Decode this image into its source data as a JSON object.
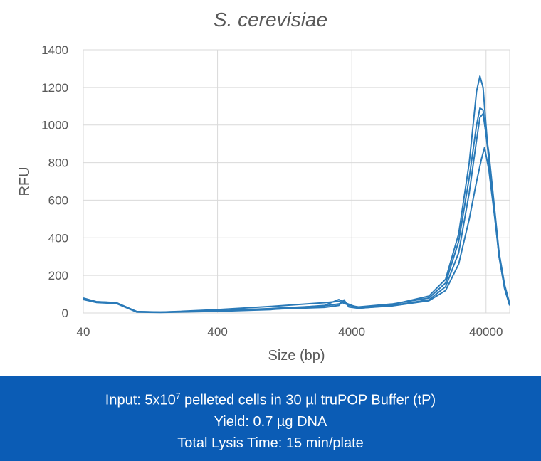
{
  "chart_data": {
    "type": "line",
    "title": "S. cerevisiae",
    "xlabel": "Size (bp)",
    "ylabel": "RFU",
    "xscale": "log",
    "xlim": [
      40,
      60000
    ],
    "ylim": [
      0,
      1400
    ],
    "xticks": [
      "40",
      "400",
      "4000",
      "40000"
    ],
    "yticks": [
      "0",
      "200",
      "400",
      "600",
      "800",
      "1000",
      "1200",
      "1400"
    ],
    "grid": true,
    "line_color": "#2a7ab8",
    "series": [
      {
        "points": [
          [
            40,
            80
          ],
          [
            50,
            60
          ],
          [
            60,
            58
          ],
          [
            70,
            55
          ],
          [
            100,
            8
          ],
          [
            150,
            5
          ],
          [
            200,
            8
          ],
          [
            400,
            18
          ],
          [
            1000,
            35
          ],
          [
            2500,
            55
          ],
          [
            3200,
            62
          ],
          [
            3700,
            45
          ],
          [
            4500,
            30
          ],
          [
            8000,
            45
          ],
          [
            15000,
            90
          ],
          [
            20000,
            180
          ],
          [
            25000,
            420
          ],
          [
            30000,
            800
          ],
          [
            34000,
            1180
          ],
          [
            36000,
            1260
          ],
          [
            38000,
            1200
          ],
          [
            42000,
            800
          ],
          [
            50000,
            300
          ],
          [
            55000,
            130
          ],
          [
            60000,
            40
          ]
        ]
      },
      {
        "points": [
          [
            40,
            75
          ],
          [
            50,
            58
          ],
          [
            60,
            55
          ],
          [
            70,
            54
          ],
          [
            100,
            6
          ],
          [
            150,
            4
          ],
          [
            200,
            6
          ],
          [
            400,
            10
          ],
          [
            1000,
            20
          ],
          [
            2500,
            30
          ],
          [
            3200,
            40
          ],
          [
            3500,
            70
          ],
          [
            3800,
            32
          ],
          [
            4500,
            25
          ],
          [
            8000,
            40
          ],
          [
            15000,
            70
          ],
          [
            20000,
            140
          ],
          [
            25000,
            320
          ],
          [
            30000,
            640
          ],
          [
            34000,
            920
          ],
          [
            36000,
            1040
          ],
          [
            38000,
            1060
          ],
          [
            42000,
            850
          ],
          [
            50000,
            320
          ],
          [
            55000,
            140
          ],
          [
            60000,
            45
          ]
        ]
      },
      {
        "points": [
          [
            40,
            78
          ],
          [
            50,
            60
          ],
          [
            60,
            57
          ],
          [
            70,
            56
          ],
          [
            100,
            7
          ],
          [
            150,
            5
          ],
          [
            200,
            7
          ],
          [
            400,
            12
          ],
          [
            1000,
            24
          ],
          [
            2500,
            38
          ],
          [
            3200,
            48
          ],
          [
            3500,
            60
          ],
          [
            3800,
            40
          ],
          [
            4500,
            32
          ],
          [
            8000,
            48
          ],
          [
            15000,
            80
          ],
          [
            20000,
            160
          ],
          [
            25000,
            380
          ],
          [
            30000,
            720
          ],
          [
            34000,
            1000
          ],
          [
            36000,
            1090
          ],
          [
            38000,
            1080
          ],
          [
            42000,
            820
          ],
          [
            50000,
            300
          ],
          [
            55000,
            130
          ],
          [
            60000,
            40
          ]
        ]
      },
      {
        "points": [
          [
            40,
            72
          ],
          [
            50,
            56
          ],
          [
            60,
            53
          ],
          [
            70,
            52
          ],
          [
            100,
            5
          ],
          [
            150,
            3
          ],
          [
            200,
            5
          ],
          [
            400,
            9
          ],
          [
            1000,
            18
          ],
          [
            2500,
            40
          ],
          [
            3200,
            72
          ],
          [
            3700,
            50
          ],
          [
            4500,
            26
          ],
          [
            8000,
            38
          ],
          [
            15000,
            65
          ],
          [
            20000,
            120
          ],
          [
            25000,
            260
          ],
          [
            30000,
            500
          ],
          [
            34000,
            700
          ],
          [
            37000,
            820
          ],
          [
            39000,
            880
          ],
          [
            42000,
            760
          ],
          [
            50000,
            320
          ],
          [
            55000,
            150
          ],
          [
            60000,
            50
          ]
        ]
      }
    ]
  },
  "caption": {
    "line1_pre": "Input: 5x10",
    "line1_sup": "7",
    "line1_post": " pelleted cells in 30 µl truPOP Buffer (tP)",
    "line2": "Yield:  0.7 µg DNA",
    "line3": "Total  Lysis Time: 15 min/plate"
  }
}
